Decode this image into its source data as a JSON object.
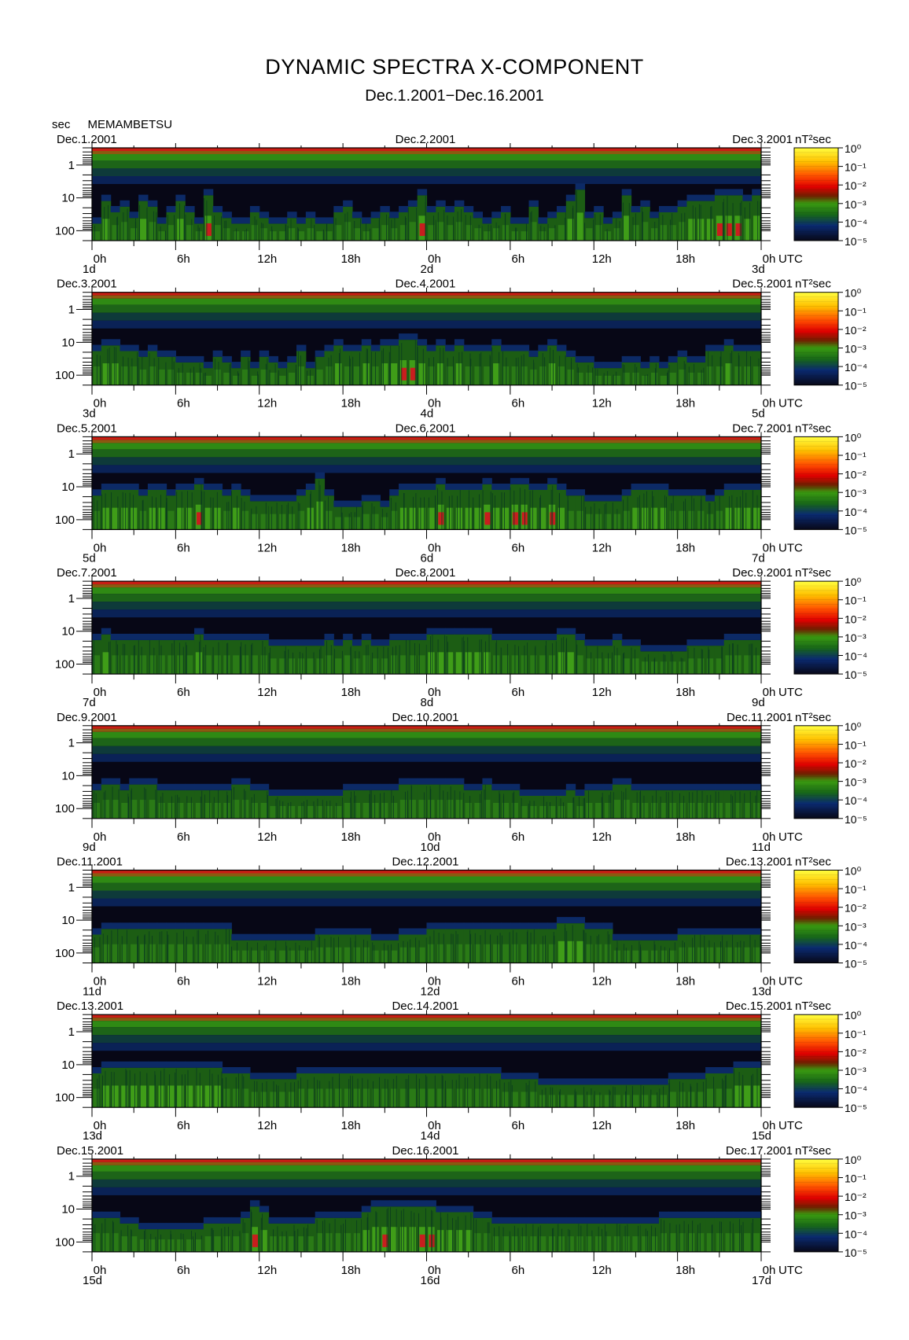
{
  "title": "DYNAMIC SPECTRA X-COMPONENT",
  "subtitle": "Dec.1.2001−Dec.16.2001",
  "y_unit": "sec",
  "station": "MEMAMBETSU",
  "colorbar_unit": "nT²sec",
  "x_unit": "UTC",
  "chart_data": {
    "type": "heatmap",
    "title": "DYNAMIC SPECTRA X-COMPONENT",
    "subtitle": "Dec.1.2001−Dec.16.2001",
    "ylabel": "sec",
    "y_scale": "log",
    "y_direction": "period increasing downward",
    "y_ticks": [
      "1",
      "10",
      "100"
    ],
    "x_ticks": [
      "0h",
      "6h",
      "12h",
      "18h",
      "0h",
      "6h",
      "12h",
      "18h",
      "0h"
    ],
    "x_unit": "UTC",
    "colorbar": {
      "unit": "nT²sec",
      "scale": "log",
      "ticks": [
        "10⁰",
        "10⁻¹",
        "10⁻²",
        "10⁻³",
        "10⁻⁴",
        "10⁻⁵"
      ],
      "colors": [
        "#ffff40",
        "#ffc000",
        "#ff6000",
        "#ff0000",
        "#b00000",
        "#602000",
        "#3a9a10",
        "#106010",
        "#0a2a70",
        "#080818"
      ]
    },
    "panels": [
      {
        "start_label": "Dec.1.2001",
        "mid_label": "Dec.2.2001",
        "end_label": "Dec.3.2001",
        "day_start": "1d",
        "day_mid": "2d",
        "day_end": "3d",
        "activity": [
          0.3,
          0.7,
          0.5,
          0.6,
          0.4,
          0.7,
          0.6,
          0.3,
          0.5,
          0.7,
          0.5,
          0.3,
          0.8,
          0.5,
          0.4,
          0.3,
          0.3,
          0.5,
          0.4,
          0.3,
          0.3,
          0.4,
          0.3,
          0.4,
          0.3,
          0.3,
          0.5,
          0.6,
          0.4,
          0.3,
          0.4,
          0.5,
          0.4,
          0.5,
          0.6,
          0.8,
          0.5,
          0.6,
          0.5,
          0.6,
          0.5,
          0.4,
          0.3,
          0.4,
          0.5,
          0.3,
          0.3,
          0.6,
          0.3,
          0.4,
          0.5,
          0.7,
          0.9,
          0.4,
          0.5,
          0.3,
          0.4,
          0.8,
          0.5,
          0.6,
          0.4,
          0.5,
          0.5,
          0.6,
          0.7,
          0.7,
          0.7,
          0.8,
          0.8,
          0.8,
          0.7,
          0.8
        ]
      },
      {
        "start_label": "Dec.3.2001",
        "mid_label": "Dec.4.2001",
        "end_label": "Dec.5.2001",
        "day_start": "3d",
        "day_mid": "4d",
        "day_end": "5d",
        "activity": [
          0.6,
          0.7,
          0.7,
          0.6,
          0.6,
          0.5,
          0.6,
          0.5,
          0.5,
          0.4,
          0.4,
          0.4,
          0.3,
          0.5,
          0.4,
          0.3,
          0.5,
          0.3,
          0.5,
          0.4,
          0.3,
          0.4,
          0.6,
          0.3,
          0.5,
          0.6,
          0.7,
          0.6,
          0.6,
          0.7,
          0.6,
          0.7,
          0.7,
          0.8,
          0.8,
          0.7,
          0.6,
          0.7,
          0.6,
          0.7,
          0.6,
          0.6,
          0.6,
          0.7,
          0.6,
          0.6,
          0.6,
          0.5,
          0.6,
          0.7,
          0.6,
          0.5,
          0.4,
          0.4,
          0.3,
          0.3,
          0.3,
          0.4,
          0.4,
          0.3,
          0.4,
          0.3,
          0.4,
          0.5,
          0.4,
          0.4,
          0.6,
          0.6,
          0.7,
          0.6,
          0.6,
          0.6
        ]
      },
      {
        "start_label": "Dec.5.2001",
        "mid_label": "Dec.6.2001",
        "end_label": "Dec.7.2001",
        "day_start": "5d",
        "day_mid": "6d",
        "day_end": "7d",
        "activity": [
          0.6,
          0.7,
          0.7,
          0.7,
          0.7,
          0.6,
          0.7,
          0.7,
          0.6,
          0.7,
          0.7,
          0.8,
          0.7,
          0.7,
          0.6,
          0.7,
          0.6,
          0.5,
          0.5,
          0.5,
          0.5,
          0.5,
          0.6,
          0.7,
          0.9,
          0.6,
          0.4,
          0.4,
          0.4,
          0.5,
          0.5,
          0.4,
          0.6,
          0.7,
          0.7,
          0.7,
          0.7,
          0.8,
          0.7,
          0.7,
          0.7,
          0.7,
          0.8,
          0.7,
          0.7,
          0.8,
          0.8,
          0.7,
          0.7,
          0.8,
          0.7,
          0.6,
          0.6,
          0.5,
          0.5,
          0.5,
          0.5,
          0.6,
          0.7,
          0.7,
          0.7,
          0.7,
          0.6,
          0.6,
          0.6,
          0.6,
          0.5,
          0.6,
          0.7,
          0.7,
          0.7,
          0.7
        ]
      },
      {
        "start_label": "Dec.7.2001",
        "mid_label": "Dec.8.2001",
        "end_label": "Dec.9.2001",
        "day_start": "7d",
        "day_mid": "8d",
        "day_end": "9d",
        "activity": [
          0.6,
          0.7,
          0.6,
          0.6,
          0.6,
          0.6,
          0.6,
          0.6,
          0.6,
          0.6,
          0.6,
          0.7,
          0.6,
          0.6,
          0.6,
          0.6,
          0.6,
          0.6,
          0.6,
          0.5,
          0.5,
          0.5,
          0.5,
          0.5,
          0.5,
          0.6,
          0.5,
          0.6,
          0.5,
          0.6,
          0.5,
          0.5,
          0.6,
          0.6,
          0.6,
          0.6,
          0.7,
          0.7,
          0.7,
          0.7,
          0.7,
          0.7,
          0.7,
          0.6,
          0.6,
          0.6,
          0.6,
          0.6,
          0.6,
          0.6,
          0.7,
          0.7,
          0.6,
          0.5,
          0.5,
          0.5,
          0.6,
          0.5,
          0.5,
          0.4,
          0.4,
          0.4,
          0.4,
          0.4,
          0.5,
          0.5,
          0.5,
          0.5,
          0.6,
          0.6,
          0.6,
          0.6
        ]
      },
      {
        "start_label": "Dec.9.2001",
        "mid_label": "Dec.10.2001",
        "end_label": "Dec.11.2001",
        "day_start": "9d",
        "day_mid": "10d",
        "day_end": "11d",
        "activity": [
          0.5,
          0.6,
          0.6,
          0.5,
          0.6,
          0.6,
          0.6,
          0.5,
          0.5,
          0.5,
          0.5,
          0.5,
          0.5,
          0.5,
          0.5,
          0.6,
          0.6,
          0.5,
          0.5,
          0.4,
          0.4,
          0.4,
          0.4,
          0.4,
          0.4,
          0.4,
          0.4,
          0.5,
          0.5,
          0.5,
          0.5,
          0.5,
          0.5,
          0.6,
          0.6,
          0.6,
          0.6,
          0.6,
          0.6,
          0.6,
          0.5,
          0.5,
          0.6,
          0.5,
          0.5,
          0.5,
          0.4,
          0.4,
          0.4,
          0.4,
          0.4,
          0.5,
          0.4,
          0.5,
          0.5,
          0.5,
          0.6,
          0.6,
          0.5,
          0.5,
          0.5,
          0.5,
          0.5,
          0.5,
          0.5,
          0.5,
          0.5,
          0.5,
          0.5,
          0.5,
          0.5,
          0.5
        ]
      },
      {
        "start_label": "Dec.11.2001",
        "mid_label": "Dec.12.2001",
        "end_label": "Dec.13.2001",
        "day_start": "11d",
        "day_mid": "12d",
        "day_end": "13d",
        "activity": [
          0.5,
          0.6,
          0.6,
          0.6,
          0.6,
          0.6,
          0.6,
          0.6,
          0.6,
          0.6,
          0.6,
          0.6,
          0.6,
          0.6,
          0.6,
          0.4,
          0.4,
          0.4,
          0.4,
          0.4,
          0.4,
          0.4,
          0.4,
          0.4,
          0.5,
          0.5,
          0.5,
          0.5,
          0.5,
          0.5,
          0.4,
          0.4,
          0.4,
          0.5,
          0.5,
          0.5,
          0.6,
          0.6,
          0.6,
          0.6,
          0.6,
          0.6,
          0.6,
          0.6,
          0.6,
          0.6,
          0.6,
          0.6,
          0.6,
          0.6,
          0.7,
          0.7,
          0.7,
          0.6,
          0.6,
          0.6,
          0.4,
          0.4,
          0.4,
          0.4,
          0.4,
          0.4,
          0.4,
          0.5,
          0.5,
          0.5,
          0.5,
          0.5,
          0.5,
          0.5,
          0.5,
          0.5
        ]
      },
      {
        "start_label": "Dec.13.2001",
        "mid_label": "Dec.14.2001",
        "end_label": "Dec.15.2001",
        "day_start": "13d",
        "day_mid": "14d",
        "day_end": "15d",
        "activity": [
          0.6,
          0.7,
          0.7,
          0.7,
          0.7,
          0.7,
          0.7,
          0.7,
          0.7,
          0.7,
          0.7,
          0.7,
          0.7,
          0.7,
          0.6,
          0.6,
          0.6,
          0.5,
          0.5,
          0.5,
          0.5,
          0.5,
          0.6,
          0.6,
          0.6,
          0.6,
          0.6,
          0.6,
          0.6,
          0.6,
          0.6,
          0.6,
          0.6,
          0.6,
          0.6,
          0.6,
          0.6,
          0.6,
          0.6,
          0.6,
          0.6,
          0.6,
          0.6,
          0.6,
          0.5,
          0.5,
          0.5,
          0.5,
          0.4,
          0.4,
          0.4,
          0.4,
          0.4,
          0.4,
          0.4,
          0.4,
          0.4,
          0.4,
          0.4,
          0.4,
          0.4,
          0.4,
          0.5,
          0.5,
          0.5,
          0.5,
          0.6,
          0.6,
          0.6,
          0.7,
          0.7,
          0.7
        ]
      },
      {
        "start_label": "Dec.15.2001",
        "mid_label": "Dec.16.2001",
        "end_label": "Dec.17.2001",
        "day_start": "15d",
        "day_mid": "16d",
        "day_end": "17d",
        "activity": [
          0.6,
          0.6,
          0.6,
          0.5,
          0.5,
          0.4,
          0.4,
          0.4,
          0.4,
          0.4,
          0.4,
          0.4,
          0.5,
          0.5,
          0.5,
          0.5,
          0.6,
          0.8,
          0.7,
          0.5,
          0.5,
          0.5,
          0.5,
          0.5,
          0.6,
          0.6,
          0.6,
          0.6,
          0.6,
          0.7,
          0.8,
          0.8,
          0.8,
          0.8,
          0.8,
          0.8,
          0.8,
          0.7,
          0.7,
          0.7,
          0.7,
          0.6,
          0.6,
          0.5,
          0.5,
          0.5,
          0.5,
          0.5,
          0.5,
          0.5,
          0.5,
          0.5,
          0.5,
          0.5,
          0.5,
          0.5,
          0.5,
          0.5,
          0.5,
          0.5,
          0.5,
          0.6,
          0.6,
          0.6,
          0.6,
          0.6,
          0.6,
          0.6,
          0.6,
          0.6,
          0.6,
          0.6
        ]
      }
    ]
  }
}
